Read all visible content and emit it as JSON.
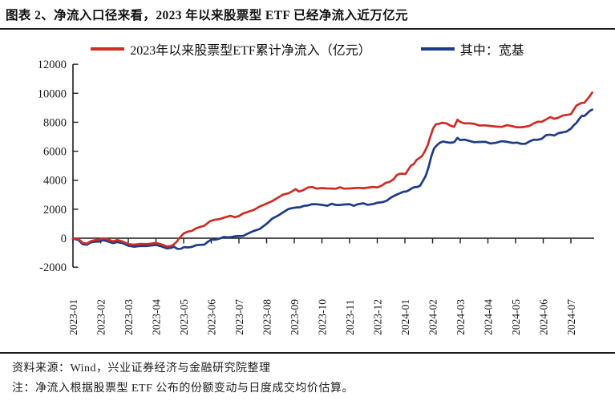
{
  "title": "图表 2、净流入口径来看，2023 年以来股票型 ETF 已经净流入近万亿元",
  "source_note": "资料来源：Wind，兴业证券经济与金融研究院整理",
  "method_note": "注：净流入根据股票型 ETF 公布的份额变动与日度成交均价估算。",
  "colors": {
    "axis": "#1c1c1c",
    "red_line": "#cf2c26",
    "blue_line": "#1c3c85"
  },
  "chart_data": {
    "type": "line",
    "title": "",
    "xlabel": "",
    "ylabel": "",
    "grid": false,
    "legend_position": "top",
    "ylim": [
      -2000,
      12000
    ],
    "y_tick_labels": [
      "-2000",
      "0",
      "2000",
      "4000",
      "6000",
      "8000",
      "10000",
      "12000"
    ],
    "y_ticks": [
      -2000,
      0,
      2000,
      4000,
      6000,
      8000,
      10000,
      12000
    ],
    "x_tick_labels": [
      "2023-01",
      "2023-02",
      "2023-03",
      "2023-04",
      "2023-05",
      "2023-06",
      "2023-07",
      "2023-08",
      "2023-09",
      "2023-10",
      "2023-11",
      "2023-12",
      "2024-01",
      "2024-02",
      "2024-03",
      "2024-04",
      "2024-05",
      "2024-06",
      "2024-07"
    ],
    "x_unit": "month index, 0 = 2023-01 tick",
    "series": [
      {
        "id": "total",
        "name": "2023年以来股票型ETF累计净流入（亿元）",
        "color": "#cf2c26",
        "points": [
          [
            0,
            -20
          ],
          [
            0.2,
            -100
          ],
          [
            0.35,
            -300
          ],
          [
            0.5,
            -350
          ],
          [
            0.65,
            -250
          ],
          [
            0.8,
            -130
          ],
          [
            0.95,
            -60
          ],
          [
            1.1,
            -40
          ],
          [
            1.25,
            -100
          ],
          [
            1.45,
            -170
          ],
          [
            1.6,
            -130
          ],
          [
            1.8,
            -270
          ],
          [
            2,
            -370
          ],
          [
            2.2,
            -430
          ],
          [
            2.45,
            -440
          ],
          [
            2.65,
            -400
          ],
          [
            2.8,
            -340
          ],
          [
            3,
            -360
          ],
          [
            3.2,
            -450
          ],
          [
            3.4,
            -530
          ],
          [
            3.55,
            -550
          ],
          [
            3.65,
            -460
          ],
          [
            3.75,
            -200
          ],
          [
            3.87,
            60
          ],
          [
            4,
            280
          ],
          [
            4.15,
            470
          ],
          [
            4.3,
            540
          ],
          [
            4.45,
            640
          ],
          [
            4.6,
            770
          ],
          [
            4.75,
            910
          ],
          [
            4.95,
            1150
          ],
          [
            5.1,
            1230
          ],
          [
            5.3,
            1360
          ],
          [
            5.5,
            1450
          ],
          [
            5.7,
            1500
          ],
          [
            5.85,
            1470
          ],
          [
            6,
            1560
          ],
          [
            6.15,
            1660
          ],
          [
            6.35,
            1830
          ],
          [
            6.55,
            2010
          ],
          [
            6.75,
            2160
          ],
          [
            7,
            2360
          ],
          [
            7.2,
            2600
          ],
          [
            7.4,
            2790
          ],
          [
            7.6,
            2970
          ],
          [
            7.8,
            3130
          ],
          [
            7.95,
            3290
          ],
          [
            8.05,
            3350
          ],
          [
            8.17,
            3220
          ],
          [
            8.3,
            3340
          ],
          [
            8.5,
            3470
          ],
          [
            8.65,
            3510
          ],
          [
            8.8,
            3470
          ],
          [
            9,
            3450
          ],
          [
            9.2,
            3390
          ],
          [
            9.35,
            3460
          ],
          [
            9.5,
            3430
          ],
          [
            9.65,
            3470
          ],
          [
            9.8,
            3430
          ],
          [
            10,
            3470
          ],
          [
            10.15,
            3420
          ],
          [
            10.3,
            3460
          ],
          [
            10.5,
            3500
          ],
          [
            10.65,
            3470
          ],
          [
            10.85,
            3500
          ],
          [
            11,
            3540
          ],
          [
            11.15,
            3630
          ],
          [
            11.3,
            3770
          ],
          [
            11.45,
            3910
          ],
          [
            11.6,
            4110
          ],
          [
            11.7,
            4300
          ],
          [
            11.8,
            4430
          ],
          [
            11.92,
            4500
          ],
          [
            12.02,
            4400
          ],
          [
            12.12,
            4700
          ],
          [
            12.22,
            5050
          ],
          [
            12.32,
            5120
          ],
          [
            12.42,
            5350
          ],
          [
            12.52,
            5550
          ],
          [
            12.62,
            5700
          ],
          [
            12.72,
            5950
          ],
          [
            12.82,
            6400
          ],
          [
            12.92,
            7050
          ],
          [
            13.02,
            7550
          ],
          [
            13.12,
            7830
          ],
          [
            13.22,
            7930
          ],
          [
            13.35,
            7960
          ],
          [
            13.5,
            7880
          ],
          [
            13.65,
            7790
          ],
          [
            13.78,
            7710
          ],
          [
            13.9,
            8130
          ],
          [
            14,
            8030
          ],
          [
            14.15,
            7960
          ],
          [
            14.3,
            7900
          ],
          [
            14.5,
            7870
          ],
          [
            14.7,
            7820
          ],
          [
            14.9,
            7780
          ],
          [
            15.1,
            7700
          ],
          [
            15.3,
            7730
          ],
          [
            15.5,
            7700
          ],
          [
            15.7,
            7750
          ],
          [
            15.9,
            7730
          ],
          [
            16.05,
            7690
          ],
          [
            16.2,
            7620
          ],
          [
            16.35,
            7680
          ],
          [
            16.5,
            7800
          ],
          [
            16.65,
            7900
          ],
          [
            16.8,
            8000
          ],
          [
            16.95,
            8070
          ],
          [
            17.1,
            8200
          ],
          [
            17.25,
            8310
          ],
          [
            17.4,
            8260
          ],
          [
            17.55,
            8350
          ],
          [
            17.7,
            8420
          ],
          [
            17.85,
            8500
          ],
          [
            18,
            8600
          ],
          [
            18.1,
            8850
          ],
          [
            18.2,
            9120
          ],
          [
            18.3,
            9300
          ],
          [
            18.4,
            9340
          ],
          [
            18.48,
            9290
          ],
          [
            18.58,
            9580
          ],
          [
            18.68,
            9830
          ],
          [
            18.77,
            10050
          ]
        ]
      },
      {
        "id": "broad_base",
        "name": "其中：宽基",
        "color": "#1c3c85",
        "points": [
          [
            0,
            -30
          ],
          [
            0.2,
            -170
          ],
          [
            0.35,
            -390
          ],
          [
            0.5,
            -430
          ],
          [
            0.65,
            -330
          ],
          [
            0.8,
            -240
          ],
          [
            0.95,
            -190
          ],
          [
            1.1,
            -170
          ],
          [
            1.25,
            -240
          ],
          [
            1.45,
            -300
          ],
          [
            1.6,
            -270
          ],
          [
            1.8,
            -390
          ],
          [
            2,
            -490
          ],
          [
            2.2,
            -570
          ],
          [
            2.45,
            -580
          ],
          [
            2.65,
            -530
          ],
          [
            2.8,
            -470
          ],
          [
            3,
            -500
          ],
          [
            3.2,
            -580
          ],
          [
            3.4,
            -660
          ],
          [
            3.55,
            -680
          ],
          [
            3.65,
            -630
          ],
          [
            3.78,
            -700
          ],
          [
            3.9,
            -720
          ],
          [
            4.02,
            -660
          ],
          [
            4.15,
            -620
          ],
          [
            4.3,
            -570
          ],
          [
            4.45,
            -520
          ],
          [
            4.6,
            -470
          ],
          [
            4.75,
            -400
          ],
          [
            4.9,
            -230
          ],
          [
            5.02,
            -120
          ],
          [
            5.15,
            -60
          ],
          [
            5.3,
            -20
          ],
          [
            5.45,
            40
          ],
          [
            5.6,
            80
          ],
          [
            5.75,
            110
          ],
          [
            5.87,
            90
          ],
          [
            6,
            140
          ],
          [
            6.15,
            200
          ],
          [
            6.35,
            320
          ],
          [
            6.55,
            480
          ],
          [
            6.75,
            680
          ],
          [
            7,
            990
          ],
          [
            7.2,
            1310
          ],
          [
            7.4,
            1570
          ],
          [
            7.6,
            1810
          ],
          [
            7.8,
            1980
          ],
          [
            7.95,
            2090
          ],
          [
            8.07,
            2160
          ],
          [
            8.2,
            2100
          ],
          [
            8.35,
            2210
          ],
          [
            8.5,
            2310
          ],
          [
            8.65,
            2340
          ],
          [
            8.8,
            2300
          ],
          [
            9,
            2330
          ],
          [
            9.2,
            2260
          ],
          [
            9.35,
            2330
          ],
          [
            9.5,
            2300
          ],
          [
            9.65,
            2330
          ],
          [
            9.8,
            2290
          ],
          [
            10,
            2330
          ],
          [
            10.15,
            2280
          ],
          [
            10.3,
            2330
          ],
          [
            10.5,
            2370
          ],
          [
            10.65,
            2340
          ],
          [
            10.85,
            2370
          ],
          [
            11,
            2400
          ],
          [
            11.2,
            2510
          ],
          [
            11.35,
            2630
          ],
          [
            11.5,
            2770
          ],
          [
            11.65,
            2950
          ],
          [
            11.8,
            3130
          ],
          [
            11.95,
            3190
          ],
          [
            12.05,
            3190
          ],
          [
            12.15,
            3360
          ],
          [
            12.25,
            3450
          ],
          [
            12.35,
            3480
          ],
          [
            12.45,
            3560
          ],
          [
            12.55,
            3660
          ],
          [
            12.65,
            3910
          ],
          [
            12.75,
            4300
          ],
          [
            12.85,
            4900
          ],
          [
            12.95,
            5600
          ],
          [
            13.05,
            6150
          ],
          [
            13.15,
            6450
          ],
          [
            13.25,
            6570
          ],
          [
            13.38,
            6630
          ],
          [
            13.5,
            6650
          ],
          [
            13.65,
            6610
          ],
          [
            13.78,
            6580
          ],
          [
            13.9,
            6930
          ],
          [
            14,
            6810
          ],
          [
            14.15,
            6770
          ],
          [
            14.3,
            6710
          ],
          [
            14.5,
            6670
          ],
          [
            14.7,
            6630
          ],
          [
            14.9,
            6610
          ],
          [
            15.1,
            6570
          ],
          [
            15.3,
            6610
          ],
          [
            15.5,
            6650
          ],
          [
            15.7,
            6660
          ],
          [
            15.9,
            6610
          ],
          [
            16.05,
            6560
          ],
          [
            16.2,
            6500
          ],
          [
            16.35,
            6560
          ],
          [
            16.5,
            6660
          ],
          [
            16.65,
            6760
          ],
          [
            16.8,
            6830
          ],
          [
            16.95,
            6880
          ],
          [
            17.1,
            7060
          ],
          [
            17.25,
            7160
          ],
          [
            17.4,
            7120
          ],
          [
            17.55,
            7210
          ],
          [
            17.7,
            7290
          ],
          [
            17.85,
            7410
          ],
          [
            18,
            7540
          ],
          [
            18.1,
            7760
          ],
          [
            18.2,
            8000
          ],
          [
            18.3,
            8230
          ],
          [
            18.4,
            8400
          ],
          [
            18.48,
            8450
          ],
          [
            18.58,
            8620
          ],
          [
            18.68,
            8740
          ],
          [
            18.77,
            8870
          ]
        ]
      }
    ]
  }
}
